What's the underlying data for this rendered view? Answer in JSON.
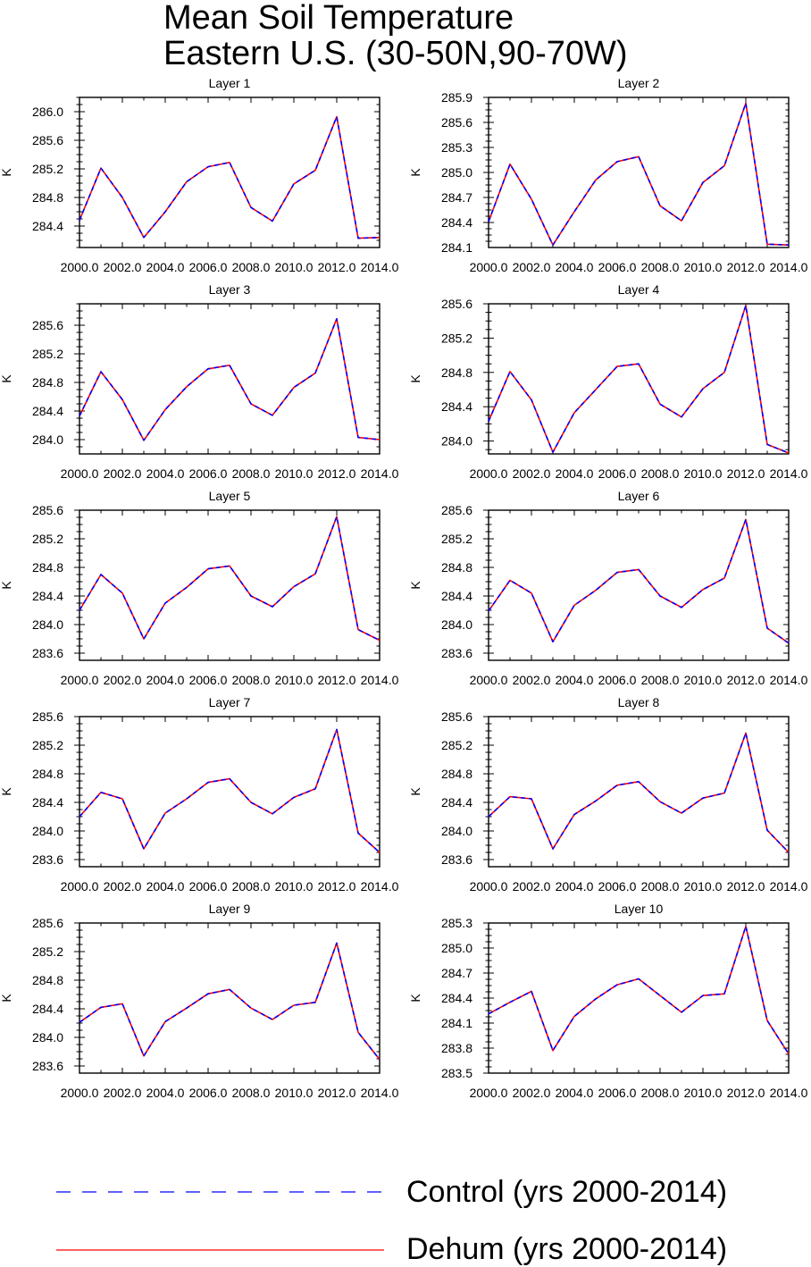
{
  "title": {
    "line1": "Mean Soil Temperature",
    "line2": "Eastern U.S. (30-50N,90-70W)"
  },
  "legend": {
    "control_label": "Control (yrs 2000-2014)",
    "dehum_label": "Dehum (yrs 2000-2014)",
    "control_color": "#0000ff",
    "dehum_color": "#ff0000"
  },
  "chart_data": [
    {
      "type": "line",
      "title": "Layer 1",
      "ylabel": "K",
      "x": [
        2000,
        2001,
        2002,
        2003,
        2004,
        2005,
        2006,
        2007,
        2008,
        2009,
        2010,
        2011,
        2012,
        2013,
        2014
      ],
      "xticks": [
        "2000.0",
        "2002.0",
        "2004.0",
        "2006.0",
        "2008.0",
        "2010.0",
        "2012.0",
        "2014.0"
      ],
      "yticks": [
        "284.4",
        "284.8",
        "285.2",
        "285.6",
        "286.0"
      ],
      "xlim": [
        2000,
        2014
      ],
      "ylim": [
        284.1,
        286.2
      ],
      "series": [
        {
          "name": "Control (yrs 2000-2014)",
          "values": [
            284.48,
            285.21,
            284.8,
            284.24,
            284.6,
            285.02,
            285.23,
            285.29,
            284.66,
            284.47,
            284.99,
            285.18,
            285.93,
            284.23,
            284.24
          ]
        },
        {
          "name": "Dehum (yrs 2000-2014)",
          "values": [
            284.48,
            285.21,
            284.8,
            284.24,
            284.6,
            285.02,
            285.23,
            285.29,
            284.66,
            284.47,
            284.99,
            285.18,
            285.93,
            284.23,
            284.24
          ]
        }
      ]
    },
    {
      "type": "line",
      "title": "Layer 2",
      "ylabel": "K",
      "x": [
        2000,
        2001,
        2002,
        2003,
        2004,
        2005,
        2006,
        2007,
        2008,
        2009,
        2010,
        2011,
        2012,
        2013,
        2014
      ],
      "xticks": [
        "2000.0",
        "2002.0",
        "2004.0",
        "2006.0",
        "2008.0",
        "2010.0",
        "2012.0",
        "2014.0"
      ],
      "yticks": [
        "284.1",
        "284.4",
        "284.7",
        "285.0",
        "285.3",
        "285.6",
        "285.9"
      ],
      "xlim": [
        2000,
        2014
      ],
      "ylim": [
        284.1,
        285.9
      ],
      "series": [
        {
          "name": "Control (yrs 2000-2014)",
          "values": [
            284.41,
            285.1,
            284.68,
            284.13,
            284.53,
            284.91,
            285.13,
            285.19,
            284.6,
            284.42,
            284.88,
            285.08,
            285.83,
            284.14,
            284.13
          ]
        },
        {
          "name": "Dehum (yrs 2000-2014)",
          "values": [
            284.41,
            285.1,
            284.68,
            284.13,
            284.53,
            284.91,
            285.13,
            285.19,
            284.6,
            284.42,
            284.88,
            285.08,
            285.83,
            284.14,
            284.13
          ]
        }
      ]
    },
    {
      "type": "line",
      "title": "Layer 3",
      "ylabel": "K",
      "x": [
        2000,
        2001,
        2002,
        2003,
        2004,
        2005,
        2006,
        2007,
        2008,
        2009,
        2010,
        2011,
        2012,
        2013,
        2014
      ],
      "xticks": [
        "2000.0",
        "2002.0",
        "2004.0",
        "2006.0",
        "2008.0",
        "2010.0",
        "2012.0",
        "2014.0"
      ],
      "yticks": [
        "284.0",
        "284.4",
        "284.8",
        "285.2",
        "285.6"
      ],
      "xlim": [
        2000,
        2014
      ],
      "ylim": [
        283.8,
        285.9
      ],
      "series": [
        {
          "name": "Control (yrs 2000-2014)",
          "values": [
            284.33,
            284.95,
            284.56,
            283.99,
            284.42,
            284.74,
            284.99,
            285.04,
            284.5,
            284.34,
            284.73,
            284.93,
            285.69,
            284.03,
            284.0
          ]
        },
        {
          "name": "Dehum (yrs 2000-2014)",
          "values": [
            284.33,
            284.95,
            284.56,
            283.99,
            284.42,
            284.74,
            284.99,
            285.04,
            284.5,
            284.34,
            284.73,
            284.93,
            285.69,
            284.03,
            284.0
          ]
        }
      ]
    },
    {
      "type": "line",
      "title": "Layer 4",
      "ylabel": "K",
      "x": [
        2000,
        2001,
        2002,
        2003,
        2004,
        2005,
        2006,
        2007,
        2008,
        2009,
        2010,
        2011,
        2012,
        2013,
        2014
      ],
      "xticks": [
        "2000.0",
        "2002.0",
        "2004.0",
        "2006.0",
        "2008.0",
        "2010.0",
        "2012.0",
        "2014.0"
      ],
      "yticks": [
        "284.0",
        "284.4",
        "284.8",
        "285.2",
        "285.6"
      ],
      "xlim": [
        2000,
        2014
      ],
      "ylim": [
        283.85,
        285.6
      ],
      "series": [
        {
          "name": "Control (yrs 2000-2014)",
          "values": [
            284.23,
            284.81,
            284.48,
            283.87,
            284.33,
            284.6,
            284.87,
            284.9,
            284.43,
            284.28,
            284.61,
            284.8,
            285.58,
            283.96,
            283.86
          ]
        },
        {
          "name": "Dehum (yrs 2000-2014)",
          "values": [
            284.23,
            284.81,
            284.48,
            283.87,
            284.33,
            284.6,
            284.87,
            284.9,
            284.43,
            284.28,
            284.61,
            284.8,
            285.58,
            283.96,
            283.86
          ]
        }
      ]
    },
    {
      "type": "line",
      "title": "Layer 5",
      "ylabel": "K",
      "x": [
        2000,
        2001,
        2002,
        2003,
        2004,
        2005,
        2006,
        2007,
        2008,
        2009,
        2010,
        2011,
        2012,
        2013,
        2014
      ],
      "xticks": [
        "2000.0",
        "2002.0",
        "2004.0",
        "2006.0",
        "2008.0",
        "2010.0",
        "2012.0",
        "2014.0"
      ],
      "yticks": [
        "283.6",
        "284.0",
        "284.4",
        "284.8",
        "285.2",
        "285.6"
      ],
      "xlim": [
        2000,
        2014
      ],
      "ylim": [
        283.5,
        285.6
      ],
      "series": [
        {
          "name": "Control (yrs 2000-2014)",
          "values": [
            284.2,
            284.7,
            284.44,
            283.8,
            284.3,
            284.52,
            284.78,
            284.82,
            284.4,
            284.25,
            284.53,
            284.71,
            285.51,
            283.93,
            283.78
          ]
        },
        {
          "name": "Dehum (yrs 2000-2014)",
          "values": [
            284.2,
            284.7,
            284.44,
            283.8,
            284.3,
            284.52,
            284.78,
            284.82,
            284.4,
            284.25,
            284.53,
            284.71,
            285.51,
            283.93,
            283.78
          ]
        }
      ]
    },
    {
      "type": "line",
      "title": "Layer 6",
      "ylabel": "K",
      "x": [
        2000,
        2001,
        2002,
        2003,
        2004,
        2005,
        2006,
        2007,
        2008,
        2009,
        2010,
        2011,
        2012,
        2013,
        2014
      ],
      "xticks": [
        "2000.0",
        "2002.0",
        "2004.0",
        "2006.0",
        "2008.0",
        "2010.0",
        "2012.0",
        "2014.0"
      ],
      "yticks": [
        "283.6",
        "284.0",
        "284.4",
        "284.8",
        "285.2",
        "285.6"
      ],
      "xlim": [
        2000,
        2014
      ],
      "ylim": [
        283.5,
        285.6
      ],
      "series": [
        {
          "name": "Control (yrs 2000-2014)",
          "values": [
            284.19,
            284.62,
            284.44,
            283.76,
            284.27,
            284.48,
            284.73,
            284.77,
            284.4,
            284.24,
            284.49,
            284.65,
            285.47,
            283.95,
            283.74
          ]
        },
        {
          "name": "Dehum (yrs 2000-2014)",
          "values": [
            284.19,
            284.62,
            284.44,
            283.76,
            284.27,
            284.48,
            284.73,
            284.77,
            284.4,
            284.24,
            284.49,
            284.65,
            285.47,
            283.95,
            283.74
          ]
        }
      ]
    },
    {
      "type": "line",
      "title": "Layer 7",
      "ylabel": "K",
      "x": [
        2000,
        2001,
        2002,
        2003,
        2004,
        2005,
        2006,
        2007,
        2008,
        2009,
        2010,
        2011,
        2012,
        2013,
        2014
      ],
      "xticks": [
        "2000.0",
        "2002.0",
        "2004.0",
        "2006.0",
        "2008.0",
        "2010.0",
        "2012.0",
        "2014.0"
      ],
      "yticks": [
        "283.6",
        "284.0",
        "284.4",
        "284.8",
        "285.2",
        "285.6"
      ],
      "xlim": [
        2000,
        2014
      ],
      "ylim": [
        283.5,
        285.6
      ],
      "series": [
        {
          "name": "Control (yrs 2000-2014)",
          "values": [
            284.2,
            284.54,
            284.45,
            283.75,
            284.25,
            284.45,
            284.68,
            284.73,
            284.4,
            284.24,
            284.47,
            284.59,
            285.42,
            283.97,
            283.7
          ]
        },
        {
          "name": "Dehum (yrs 2000-2014)",
          "values": [
            284.2,
            284.54,
            284.45,
            283.75,
            284.25,
            284.45,
            284.68,
            284.73,
            284.4,
            284.24,
            284.47,
            284.59,
            285.42,
            283.97,
            283.7
          ]
        }
      ]
    },
    {
      "type": "line",
      "title": "Layer 8",
      "ylabel": "K",
      "x": [
        2000,
        2001,
        2002,
        2003,
        2004,
        2005,
        2006,
        2007,
        2008,
        2009,
        2010,
        2011,
        2012,
        2013,
        2014
      ],
      "xticks": [
        "2000.0",
        "2002.0",
        "2004.0",
        "2006.0",
        "2008.0",
        "2010.0",
        "2012.0",
        "2014.0"
      ],
      "yticks": [
        "283.6",
        "284.0",
        "284.4",
        "284.8",
        "285.2",
        "285.6"
      ],
      "xlim": [
        2000,
        2014
      ],
      "ylim": [
        283.5,
        285.6
      ],
      "series": [
        {
          "name": "Control (yrs 2000-2014)",
          "values": [
            284.2,
            284.48,
            284.45,
            283.75,
            284.23,
            284.42,
            284.64,
            284.69,
            284.41,
            284.25,
            284.46,
            284.53,
            285.37,
            284.01,
            283.7
          ]
        },
        {
          "name": "Dehum (yrs 2000-2014)",
          "values": [
            284.2,
            284.48,
            284.45,
            283.75,
            284.23,
            284.42,
            284.64,
            284.69,
            284.41,
            284.25,
            284.46,
            284.53,
            285.37,
            284.01,
            283.7
          ]
        }
      ]
    },
    {
      "type": "line",
      "title": "Layer 9",
      "ylabel": "K",
      "x": [
        2000,
        2001,
        2002,
        2003,
        2004,
        2005,
        2006,
        2007,
        2008,
        2009,
        2010,
        2011,
        2012,
        2013,
        2014
      ],
      "xticks": [
        "2000.0",
        "2002.0",
        "2004.0",
        "2006.0",
        "2008.0",
        "2010.0",
        "2012.0",
        "2014.0"
      ],
      "yticks": [
        "283.6",
        "284.0",
        "284.4",
        "284.8",
        "285.2",
        "285.6"
      ],
      "xlim": [
        2000,
        2014
      ],
      "ylim": [
        283.5,
        285.6
      ],
      "series": [
        {
          "name": "Control (yrs 2000-2014)",
          "values": [
            284.21,
            284.42,
            284.47,
            283.74,
            284.22,
            284.41,
            284.61,
            284.67,
            284.41,
            284.25,
            284.45,
            284.49,
            285.32,
            284.07,
            283.69
          ]
        },
        {
          "name": "Dehum (yrs 2000-2014)",
          "values": [
            284.21,
            284.42,
            284.47,
            283.74,
            284.22,
            284.41,
            284.61,
            284.67,
            284.41,
            284.25,
            284.45,
            284.49,
            285.32,
            284.07,
            283.69
          ]
        }
      ]
    },
    {
      "type": "line",
      "title": "Layer 10",
      "ylabel": "K",
      "x": [
        2000,
        2001,
        2002,
        2003,
        2004,
        2005,
        2006,
        2007,
        2008,
        2009,
        2010,
        2011,
        2012,
        2013,
        2014
      ],
      "xticks": [
        "2000.0",
        "2002.0",
        "2004.0",
        "2006.0",
        "2008.0",
        "2010.0",
        "2012.0",
        "2014.0"
      ],
      "yticks": [
        "283.5",
        "283.8",
        "284.1",
        "284.4",
        "284.7",
        "285.0",
        "285.3"
      ],
      "xlim": [
        2000,
        2014
      ],
      "ylim": [
        283.5,
        285.3
      ],
      "series": [
        {
          "name": "Control (yrs 2000-2014)",
          "values": [
            284.21,
            284.35,
            284.48,
            283.77,
            284.18,
            284.39,
            284.56,
            284.63,
            284.43,
            284.23,
            284.43,
            284.45,
            285.26,
            284.13,
            283.73
          ]
        },
        {
          "name": "Dehum (yrs 2000-2014)",
          "values": [
            284.21,
            284.35,
            284.48,
            283.77,
            284.18,
            284.39,
            284.56,
            284.63,
            284.43,
            284.23,
            284.43,
            284.45,
            285.26,
            284.13,
            283.73
          ]
        }
      ]
    }
  ]
}
